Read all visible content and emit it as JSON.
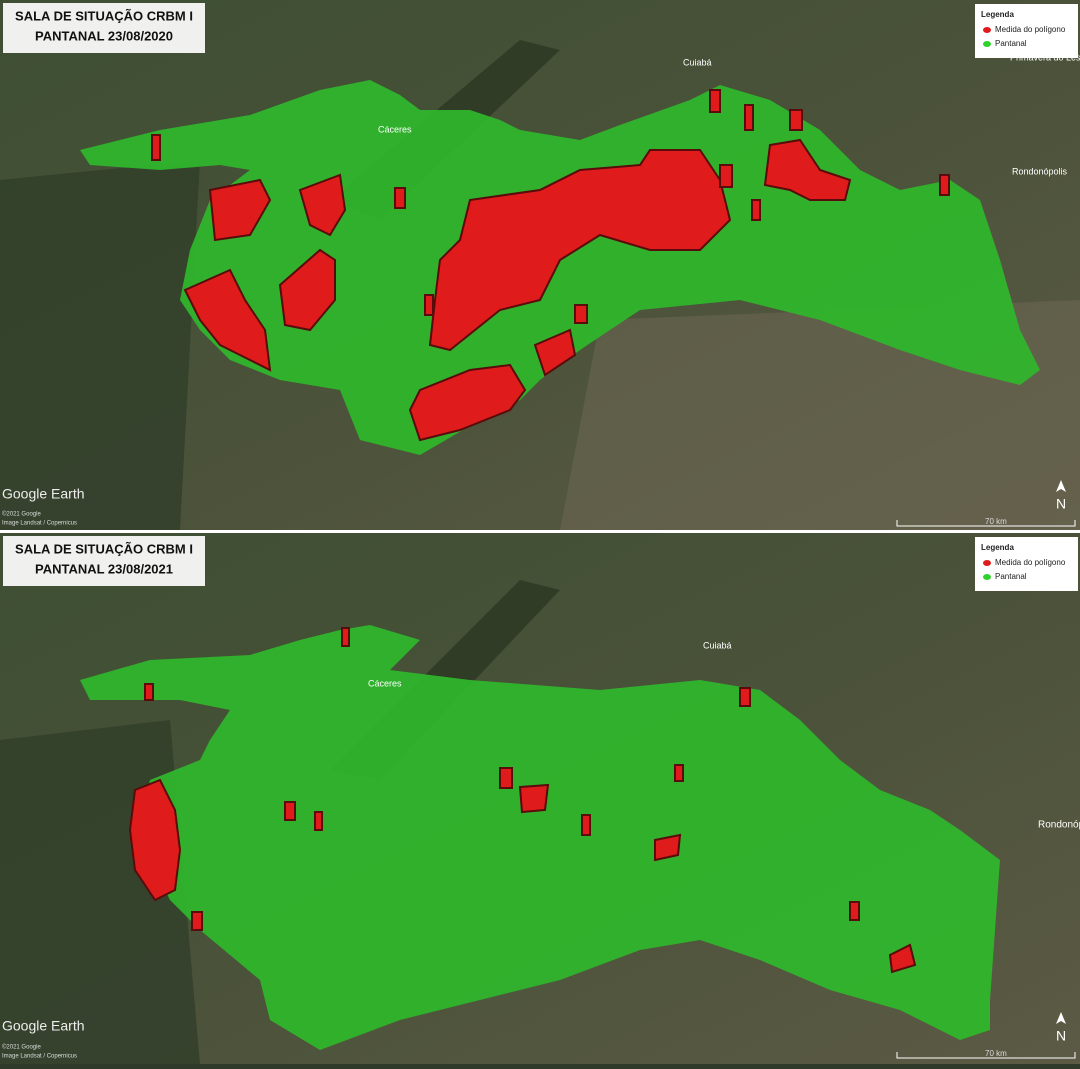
{
  "panels": [
    {
      "title": [
        "SALA DE SITUAÇÃO CRBM I",
        "PANTANAL 23/08/2020"
      ],
      "legend": {
        "title": "Legenda",
        "items": [
          "Medida do polígono",
          "Pantanal"
        ]
      },
      "places": [
        "Cuiabá",
        "Cáceres",
        "Rondonópolis",
        "Primavera do Leste"
      ],
      "attribution": {
        "brand": "Google Earth",
        "copyright": "©2021 Google",
        "imagery": "Image Landsat / Copernicus"
      },
      "scale": "70 km",
      "north": "N"
    },
    {
      "title": [
        "SALA DE SITUAÇÃO CRBM I",
        "PANTANAL 23/08/2021"
      ],
      "legend": {
        "title": "Legenda",
        "items": [
          "Medida do polígono",
          "Pantanal"
        ]
      },
      "places": [
        "Cuiabá",
        "Cáceres",
        "Rondonópolis"
      ],
      "attribution": {
        "brand": "Google Earth",
        "copyright": "©2021 Google",
        "imagery": "Image Landsat / Copernicus"
      },
      "scale": "70 km",
      "north": "N"
    }
  ]
}
